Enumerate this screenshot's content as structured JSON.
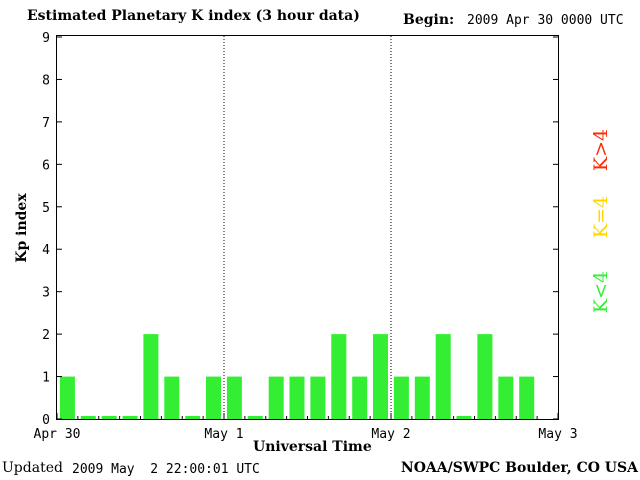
{
  "header": {
    "title": "Estimated Planetary K index (3 hour data)",
    "begin_label": "Begin:",
    "begin_value": "2009 Apr 30 0000 UTC"
  },
  "footer": {
    "updated_label": "Updated",
    "updated_value": "2009 May  2 22:00:01 UTC",
    "credit": "NOAA/SWPC Boulder, CO USA"
  },
  "legend": [
    {
      "label": "K>4",
      "color": "#ff2a00"
    },
    {
      "label": "K=4",
      "color": "#ffd700"
    },
    {
      "label": "K<4",
      "color": "#33ee33"
    }
  ],
  "chart_data": {
    "type": "bar",
    "title": "Estimated Planetary K index (3 hour data)",
    "xlabel": "Universal Time",
    "ylabel": "Kp index",
    "ylim": [
      0,
      9
    ],
    "yticks": [
      0,
      1,
      2,
      3,
      4,
      5,
      6,
      7,
      8,
      9
    ],
    "xticks": [
      "Apr 30",
      "May 1",
      "May 2",
      "May 3"
    ],
    "day_separators": [
      "May 1",
      "May 2"
    ],
    "bar_color": "#33ee33",
    "series": [
      {
        "values": [
          1,
          0,
          0,
          0,
          2,
          1,
          0,
          1,
          1,
          0,
          1,
          1,
          1,
          2,
          1,
          2,
          1,
          1,
          2,
          0,
          2,
          1,
          1
        ]
      }
    ]
  }
}
